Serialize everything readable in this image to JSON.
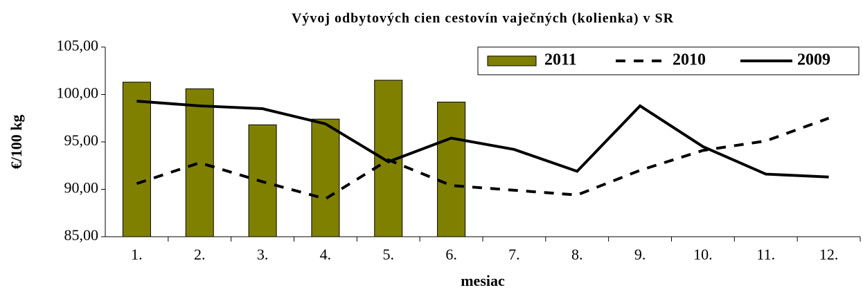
{
  "chart_data": {
    "type": "bar",
    "title": "Vývoj odbytových cien cestovín vaječných (kolienka) v SR",
    "x_label": "mesiac",
    "y_label": "€/100 kg",
    "categories": [
      "1.",
      "2.",
      "3.",
      "4.",
      "5.",
      "6.",
      "7.",
      "8.",
      "9.",
      "10.",
      "11.",
      "12."
    ],
    "series": [
      {
        "name": "2011",
        "type": "bar",
        "color": "#808000",
        "values": [
          101.3,
          100.6,
          96.8,
          97.4,
          101.5,
          99.2,
          null,
          null,
          null,
          null,
          null,
          null
        ]
      },
      {
        "name": "2010",
        "type": "line",
        "line_style": "dashed",
        "color": "#000000",
        "values": [
          90.6,
          92.8,
          90.8,
          89.0,
          93.1,
          90.4,
          89.9,
          89.4,
          92.0,
          94.1,
          95.1,
          97.5
        ]
      },
      {
        "name": "2009",
        "type": "line",
        "line_style": "solid",
        "color": "#000000",
        "values": [
          99.3,
          98.8,
          98.5,
          96.9,
          92.9,
          95.4,
          94.2,
          91.9,
          98.8,
          94.5,
          91.6,
          91.3
        ]
      }
    ],
    "ylim": [
      85,
      105
    ],
    "yticks": [
      {
        "value": 85,
        "label": "85,00"
      },
      {
        "value": 90,
        "label": "90,00"
      },
      {
        "value": 95,
        "label": "95,00"
      },
      {
        "value": 100,
        "label": "100,00"
      },
      {
        "value": 105,
        "label": "105,00"
      }
    ],
    "grid": false,
    "legend": "upper right"
  }
}
